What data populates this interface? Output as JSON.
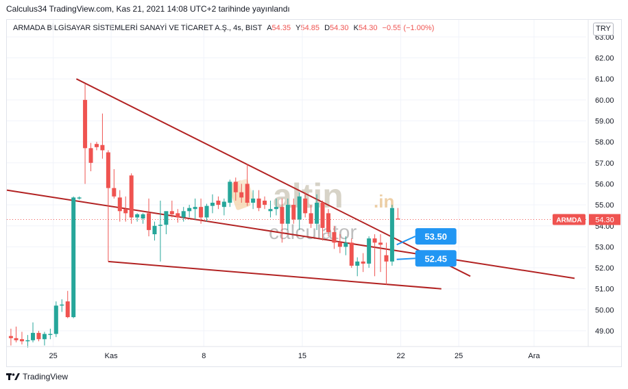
{
  "header": {
    "publish_line": "Calculus34 TradingView.com, Kas 21, 2021 14:08 UTC+2 tarihinde yayınlandı"
  },
  "legend": {
    "symbol": "ARMADA BİLGİSAYAR SİSTEMLERİ SANAYİ VE TİCARET A.Ş., 4s, BIST",
    "open_label": "A",
    "open": "54.35",
    "high_label": "Y",
    "high": "54.85",
    "low_label": "D",
    "low": "54.30",
    "close_label": "K",
    "close": "54.30",
    "change": "−0.55 (−1.00%)"
  },
  "currency_button": "TRY",
  "footer": {
    "brand": "TradingView"
  },
  "watermark": {
    "brand": "altin",
    "suffix": ".in",
    "subtitle": "calculator"
  },
  "colors": {
    "up": "#26a69a",
    "down": "#ef5350",
    "trendline": "#b22222",
    "callout": "#2196f3",
    "price_tag": "#ef5350",
    "grid": "#f0f3fa"
  },
  "chart_data": {
    "type": "candlestick",
    "title": "",
    "ylim": [
      48.5,
      63.2
    ],
    "xlim": [
      0,
      100
    ],
    "y_ticks": [
      "49.00",
      "50.00",
      "51.00",
      "52.00",
      "53.00",
      "54.00",
      "55.00",
      "56.00",
      "57.00",
      "58.00",
      "59.00",
      "60.00",
      "61.00",
      "62.00",
      "63.00"
    ],
    "x_ticks": [
      {
        "label": "25",
        "x": 8
      },
      {
        "label": "Kas",
        "x": 18
      },
      {
        "label": "8",
        "x": 34
      },
      {
        "label": "15",
        "x": 51
      },
      {
        "label": "22",
        "x": 68
      },
      {
        "label": "25",
        "x": 78
      },
      {
        "label": "Ara",
        "x": 91
      }
    ],
    "last_price": {
      "symbol": "ARMDA",
      "value": "54.30",
      "y": 54.3
    },
    "callouts": [
      {
        "text": "53.50",
        "x": 70.5,
        "y": 53.5,
        "anchor_x": 67.3,
        "anchor_y": 53.1
      },
      {
        "text": "52.45",
        "x": 70.5,
        "y": 52.45,
        "anchor_x": 67.3,
        "anchor_y": 52.4
      }
    ],
    "trendlines": [
      {
        "x1": 12,
        "y1": 61.0,
        "x2": 80,
        "y2": 51.6
      },
      {
        "x1": 0,
        "y1": 55.7,
        "x2": 98,
        "y2": 51.5
      },
      {
        "x1": 17.5,
        "y1": 52.3,
        "x2": 75,
        "y2": 51.0
      }
    ],
    "candles": [
      {
        "x": 0.7,
        "o": 48.75,
        "h": 49.1,
        "l": 48.3,
        "c": 48.65
      },
      {
        "x": 1.6,
        "o": 48.65,
        "h": 49.2,
        "l": 48.45,
        "c": 48.55
      },
      {
        "x": 2.6,
        "o": 48.6,
        "h": 48.95,
        "l": 48.35,
        "c": 48.5
      },
      {
        "x": 3.6,
        "o": 48.5,
        "h": 48.8,
        "l": 48.2,
        "c": 48.55
      },
      {
        "x": 4.5,
        "o": 48.55,
        "h": 49.4,
        "l": 48.45,
        "c": 48.9
      },
      {
        "x": 5.5,
        "o": 48.9,
        "h": 49.0,
        "l": 48.5,
        "c": 48.6
      },
      {
        "x": 6.5,
        "o": 48.6,
        "h": 48.95,
        "l": 48.3,
        "c": 48.85
      },
      {
        "x": 7.5,
        "o": 48.85,
        "h": 49.1,
        "l": 48.6,
        "c": 48.85
      },
      {
        "x": 8.5,
        "o": 48.85,
        "h": 50.4,
        "l": 48.7,
        "c": 50.2
      },
      {
        "x": 9.5,
        "o": 50.2,
        "h": 50.5,
        "l": 49.9,
        "c": 50.25
      },
      {
        "x": 10.5,
        "o": 50.4,
        "h": 50.9,
        "l": 49.6,
        "c": 49.65
      },
      {
        "x": 11.5,
        "o": 49.65,
        "h": 55.4,
        "l": 49.6,
        "c": 55.35
      },
      {
        "x": 12.5,
        "o": 55.35,
        "h": 55.4,
        "l": 55.25,
        "c": 55.35
      },
      {
        "x": 13.5,
        "o": 60.0,
        "h": 60.75,
        "l": 56.0,
        "c": 57.7
      },
      {
        "x": 14.5,
        "o": 57.7,
        "h": 57.95,
        "l": 56.6,
        "c": 57.0
      },
      {
        "x": 15.5,
        "o": 57.9,
        "h": 58.0,
        "l": 57.6,
        "c": 57.75
      },
      {
        "x": 16.5,
        "o": 57.85,
        "h": 59.35,
        "l": 57.2,
        "c": 57.6
      },
      {
        "x": 17.5,
        "o": 57.5,
        "h": 57.6,
        "l": 52.3,
        "c": 55.8
      },
      {
        "x": 18.5,
        "o": 55.8,
        "h": 56.7,
        "l": 55.3,
        "c": 55.4
      },
      {
        "x": 19.5,
        "o": 55.35,
        "h": 55.7,
        "l": 54.2,
        "c": 54.7
      },
      {
        "x": 20.5,
        "o": 54.8,
        "h": 55.4,
        "l": 54.2,
        "c": 54.6
      },
      {
        "x": 21.5,
        "o": 56.4,
        "h": 56.5,
        "l": 54.1,
        "c": 54.4
      },
      {
        "x": 22.5,
        "o": 54.4,
        "h": 54.6,
        "l": 54.2,
        "c": 54.55
      },
      {
        "x": 23.5,
        "o": 54.35,
        "h": 54.6,
        "l": 54.1,
        "c": 54.55
      },
      {
        "x": 24.5,
        "o": 54.6,
        "h": 55.3,
        "l": 53.5,
        "c": 53.8
      },
      {
        "x": 25.5,
        "o": 53.6,
        "h": 54.2,
        "l": 53.3,
        "c": 54.0
      },
      {
        "x": 26.5,
        "o": 54.0,
        "h": 55.2,
        "l": 52.3,
        "c": 54.05
      },
      {
        "x": 27.5,
        "o": 54.05,
        "h": 54.6,
        "l": 53.6,
        "c": 54.7
      },
      {
        "x": 28.5,
        "o": 54.7,
        "h": 55.2,
        "l": 54.4,
        "c": 54.55
      },
      {
        "x": 29.5,
        "o": 54.6,
        "h": 54.8,
        "l": 54.15,
        "c": 54.4
      },
      {
        "x": 30.5,
        "o": 54.4,
        "h": 54.9,
        "l": 54.2,
        "c": 54.7
      },
      {
        "x": 31.5,
        "o": 54.7,
        "h": 55.0,
        "l": 54.4,
        "c": 54.85
      },
      {
        "x": 32.5,
        "o": 54.8,
        "h": 55.3,
        "l": 54.3,
        "c": 54.9
      },
      {
        "x": 33.5,
        "o": 54.9,
        "h": 55.3,
        "l": 54.1,
        "c": 54.4
      },
      {
        "x": 34.5,
        "o": 54.4,
        "h": 55.05,
        "l": 54.2,
        "c": 54.95
      },
      {
        "x": 35.5,
        "o": 54.95,
        "h": 55.5,
        "l": 54.6,
        "c": 55.1
      },
      {
        "x": 36.5,
        "o": 55.2,
        "h": 55.4,
        "l": 54.8,
        "c": 55.0
      },
      {
        "x": 37.5,
        "o": 54.9,
        "h": 55.3,
        "l": 54.5,
        "c": 55.15
      },
      {
        "x": 38.5,
        "o": 55.1,
        "h": 56.2,
        "l": 54.9,
        "c": 56.1
      },
      {
        "x": 39.5,
        "o": 56.1,
        "h": 56.3,
        "l": 55.2,
        "c": 55.6
      },
      {
        "x": 40.5,
        "o": 55.6,
        "h": 56.0,
        "l": 55.1,
        "c": 55.35
      },
      {
        "x": 41.5,
        "o": 56.0,
        "h": 56.95,
        "l": 54.95,
        "c": 55.1
      },
      {
        "x": 42.5,
        "o": 55.1,
        "h": 55.7,
        "l": 54.8,
        "c": 55.3
      },
      {
        "x": 43.5,
        "o": 55.3,
        "h": 55.7,
        "l": 54.7,
        "c": 54.85
      },
      {
        "x": 44.5,
        "o": 55.2,
        "h": 55.4,
        "l": 54.8,
        "c": 55.0
      },
      {
        "x": 45.5,
        "o": 54.7,
        "h": 55.2,
        "l": 54.4,
        "c": 54.8
      },
      {
        "x": 46.5,
        "o": 54.8,
        "h": 55.3,
        "l": 54.5,
        "c": 54.9
      },
      {
        "x": 47.5,
        "o": 54.9,
        "h": 55.3,
        "l": 53.2,
        "c": 54.1
      },
      {
        "x": 48.5,
        "o": 54.1,
        "h": 55.3,
        "l": 53.8,
        "c": 55.0
      },
      {
        "x": 49.5,
        "o": 55.0,
        "h": 55.3,
        "l": 54.1,
        "c": 54.3
      },
      {
        "x": 50.5,
        "o": 54.3,
        "h": 55.6,
        "l": 53.8,
        "c": 55.4
      },
      {
        "x": 51.5,
        "o": 55.3,
        "h": 55.6,
        "l": 54.4,
        "c": 54.6
      },
      {
        "x": 52.5,
        "o": 54.6,
        "h": 55.0,
        "l": 53.9,
        "c": 54.1
      },
      {
        "x": 53.5,
        "o": 54.1,
        "h": 55.5,
        "l": 53.8,
        "c": 55.1
      },
      {
        "x": 54.5,
        "o": 55.1,
        "h": 55.2,
        "l": 53.3,
        "c": 53.9
      },
      {
        "x": 55.5,
        "o": 54.6,
        "h": 54.8,
        "l": 53.5,
        "c": 53.7
      },
      {
        "x": 56.5,
        "o": 53.7,
        "h": 54.0,
        "l": 52.9,
        "c": 53.2
      },
      {
        "x": 57.5,
        "o": 53.2,
        "h": 53.6,
        "l": 52.7,
        "c": 53.0
      },
      {
        "x": 58.5,
        "o": 53.0,
        "h": 53.5,
        "l": 52.6,
        "c": 53.2
      },
      {
        "x": 59.5,
        "o": 53.2,
        "h": 53.4,
        "l": 52.0,
        "c": 52.1
      },
      {
        "x": 60.5,
        "o": 52.1,
        "h": 52.5,
        "l": 51.6,
        "c": 52.3
      },
      {
        "x": 61.5,
        "o": 52.3,
        "h": 52.7,
        "l": 51.8,
        "c": 52.2
      },
      {
        "x": 62.5,
        "o": 52.2,
        "h": 53.5,
        "l": 52.0,
        "c": 53.4
      },
      {
        "x": 63.5,
        "o": 53.4,
        "h": 53.6,
        "l": 51.6,
        "c": 53.2
      },
      {
        "x": 64.5,
        "o": 53.2,
        "h": 53.6,
        "l": 51.8,
        "c": 53.1
      },
      {
        "x": 65.5,
        "o": 52.6,
        "h": 53.2,
        "l": 51.2,
        "c": 52.3
      },
      {
        "x": 66.5,
        "o": 52.3,
        "h": 55.0,
        "l": 52.1,
        "c": 54.85
      },
      {
        "x": 67.5,
        "o": 54.35,
        "h": 54.85,
        "l": 54.3,
        "c": 54.3
      }
    ]
  }
}
